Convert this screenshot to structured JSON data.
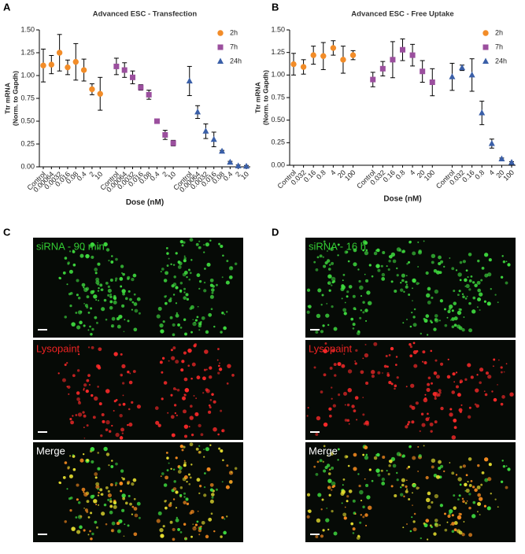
{
  "panel_labels": [
    "A",
    "B",
    "C",
    "D"
  ],
  "chart_data": [
    {
      "type": "errorbar",
      "title": "Advanced ESC - Transfection",
      "y_label": [
        "Ttr mRNA",
        "(Norm. to Gapdh)"
      ],
      "x_label": "Dose (nM)",
      "ylim": [
        0,
        1.5
      ],
      "yticks": [
        {
          "value": 0,
          "label": "0.00"
        },
        0.25,
        {
          "value": 0.5,
          "label": "0.50"
        },
        0.75,
        {
          "value": 1,
          "label": "1.00"
        },
        1.25,
        {
          "value": 1.5,
          "label": "1.50"
        }
      ],
      "legend": "top-right",
      "series": [
        {
          "name": "2h",
          "color": "#f28c28",
          "marker": "circle",
          "categories": [
            "Control",
            "0.00064",
            "0.0032",
            "0.016",
            "0.08",
            "0.4",
            "2",
            "10"
          ],
          "values": [
            1.11,
            1.12,
            1.25,
            1.09,
            1.15,
            1.06,
            0.85,
            0.8
          ],
          "errors": [
            0.18,
            0.1,
            0.2,
            0.08,
            0.2,
            0.12,
            0.06,
            0.18
          ]
        },
        {
          "name": "7h",
          "color": "#9b4f9e",
          "marker": "square",
          "categories": [
            "Control",
            "0.00064",
            "0.0032",
            "0.016",
            "0.08",
            "0.4",
            "2",
            "10"
          ],
          "values": [
            1.1,
            1.06,
            0.98,
            0.87,
            0.79,
            0.5,
            0.35,
            0.26
          ],
          "errors": [
            0.09,
            0.08,
            0.07,
            0.03,
            0.05,
            0.02,
            0.05,
            0.03
          ]
        },
        {
          "name": "24h",
          "color": "#3a5fa8",
          "marker": "triangle",
          "categories": [
            "Control",
            "0.00064",
            "0.0032",
            "0.016",
            "0.08",
            "0.4",
            "2",
            "10"
          ],
          "values": [
            0.94,
            0.6,
            0.39,
            0.3,
            0.17,
            0.05,
            0.01,
            0.005
          ],
          "errors": [
            0.16,
            0.07,
            0.08,
            0.08,
            0.01,
            0.01,
            0.01,
            0.01
          ]
        }
      ]
    },
    {
      "type": "errorbar",
      "title": "Advanced ESC - Free Uptake",
      "y_label": [
        "Ttr mRNA",
        "(Norm. to Gapdh)"
      ],
      "x_label": "Dose (nM)",
      "ylim": [
        0,
        1.5
      ],
      "yticks": [
        {
          "value": 0,
          "label": "0.00"
        },
        0.25,
        {
          "value": 0.5,
          "label": "0.50"
        },
        0.75,
        {
          "value": 1,
          "label": "1.00"
        },
        1.25,
        {
          "value": 1.5,
          "label": "1.50"
        }
      ],
      "legend": "top-right",
      "series": [
        {
          "name": "2h",
          "color": "#f28c28",
          "marker": "circle",
          "categories": [
            "Control",
            "0.032",
            "0.16",
            "0.8",
            "4",
            "20",
            "100"
          ],
          "values": [
            1.12,
            1.09,
            1.22,
            1.21,
            1.3,
            1.17,
            1.22
          ],
          "errors": [
            0.12,
            0.08,
            0.1,
            0.15,
            0.08,
            0.15,
            0.05
          ]
        },
        {
          "name": "7h",
          "color": "#9b4f9e",
          "marker": "square",
          "categories": [
            "Control",
            "0.032",
            "0.16",
            "0.8",
            "4",
            "20",
            "100"
          ],
          "values": [
            0.95,
            1.07,
            1.17,
            1.28,
            1.22,
            1.04,
            0.92
          ],
          "errors": [
            0.08,
            0.08,
            0.2,
            0.12,
            0.12,
            0.12,
            0.15
          ]
        },
        {
          "name": "24h",
          "color": "#3a5fa8",
          "marker": "triangle",
          "categories": [
            "Control",
            "0.032",
            "0.16",
            "0.8",
            "4",
            "20",
            "100"
          ],
          "values": [
            0.98,
            1.08,
            1.0,
            0.58,
            0.24,
            0.07,
            0.03
          ],
          "errors": [
            0.15,
            0.03,
            0.18,
            0.13,
            0.05,
            0.01,
            0.01
          ]
        }
      ]
    }
  ],
  "micrographs": [
    [
      "siRNA - 90 min",
      "Lysopaint",
      "Merge"
    ],
    [
      "siRNA - 16 h",
      "Lysopaint",
      "Merge"
    ]
  ]
}
